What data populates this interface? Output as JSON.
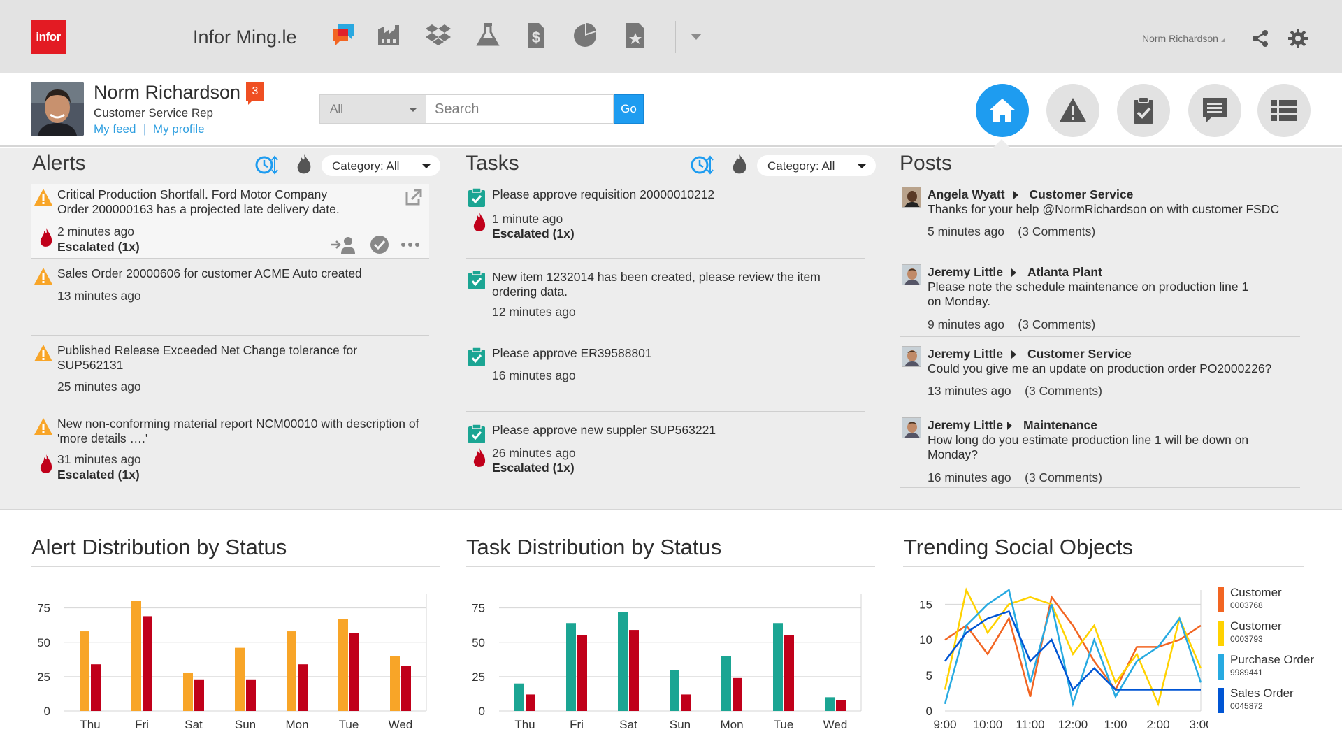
{
  "topbar": {
    "logo_text": "infor",
    "app_title": "Infor Ming.le",
    "user_menu_label": "Norm Richardson",
    "app_icons": [
      "chat-app-icon",
      "factory-app-icon",
      "dropbox-app-icon",
      "lab-flask-app-icon",
      "finance-dollar-app-icon",
      "analytics-pie-app-icon",
      "document-star-app-icon"
    ]
  },
  "profile": {
    "name": "Norm Richardson",
    "notification_count": "3",
    "role": "Customer Service Rep",
    "my_feed": "My feed",
    "link_separator": "|",
    "my_profile": "My profile"
  },
  "search": {
    "scope": "All",
    "placeholder": "Search",
    "go_label": "Go"
  },
  "nav": [
    "home",
    "alerts",
    "tasks",
    "posts",
    "list"
  ],
  "alerts": {
    "title": "Alerts",
    "category": "Category: All",
    "items": [
      {
        "text": "Critical Production Shortfall. Ford Motor Company Order 200000163 has a projected late delivery date.",
        "time": "2 minutes ago",
        "escalated": "Escalated (1x)"
      },
      {
        "text": "Sales Order 20000606 for customer ACME Auto created",
        "time": "13 minutes ago",
        "escalated": ""
      },
      {
        "text": "Published Release Exceeded Net Change tolerance for SUP562131",
        "time": "25 minutes ago",
        "escalated": ""
      },
      {
        "text": "New non-conforming material report NCM00010 with description of 'more details ….'",
        "time": "31 minutes ago",
        "escalated": "Escalated (1x)"
      }
    ]
  },
  "tasks": {
    "title": "Tasks",
    "category": "Category: All",
    "items": [
      {
        "text": "Please approve requisition 20000010212",
        "time": "1 minute ago",
        "escalated": "Escalated (1x)"
      },
      {
        "text": "New item 1232014 has been created, please review the item ordering data.",
        "time": "12 minutes ago",
        "escalated": ""
      },
      {
        "text": "Please approve ER39588801",
        "time": "16 minutes ago",
        "escalated": ""
      },
      {
        "text": "Please approve new suppler SUP563221",
        "time": "26 minutes ago",
        "escalated": "Escalated (1x)"
      }
    ]
  },
  "posts": {
    "title": "Posts",
    "items": [
      {
        "author": "Angela Wyatt",
        "group": "Customer Service",
        "text": "Thanks for your help @NormRichardson on with customer FSDC",
        "time": "5 minutes ago",
        "comments": "(3 Comments)"
      },
      {
        "author": "Jeremy Little",
        "group": "Atlanta Plant",
        "text": "Please note the schedule maintenance on production line 1 on Monday.",
        "time": "9 minutes ago",
        "comments": "(3 Comments)"
      },
      {
        "author": "Jeremy Little",
        "group": "Customer Service",
        "text": "Could you give me an update on production order PO2000226?",
        "time": "13 minutes ago",
        "comments": "(3 Comments)"
      },
      {
        "author": "Jeremy Little",
        "group": "Maintenance",
        "text": "How long do you estimate production line 1 will be down on Monday?",
        "time": "16 minutes ago",
        "comments": "(3 Comments)"
      }
    ]
  },
  "colors": {
    "accent_blue": "#1e9cf0",
    "alert_orange": "#f8a528",
    "alert_red": "#c0001a",
    "task_teal": "#1ba593",
    "task_red": "#c0001a"
  },
  "chart_data": [
    {
      "type": "bar",
      "title": "Alert Distribution by Status",
      "categories": [
        "Thu",
        "Fri",
        "Sat",
        "Sun",
        "Mon",
        "Tue",
        "Wed"
      ],
      "series": [
        {
          "color": "#f8a528",
          "values": [
            58,
            80,
            28,
            46,
            58,
            67,
            40
          ]
        },
        {
          "color": "#c0001a",
          "values": [
            34,
            69,
            23,
            23,
            34,
            57,
            33
          ]
        }
      ],
      "yticks": [
        0,
        25,
        50,
        75
      ],
      "ylim": [
        0,
        85
      ],
      "grid": true
    },
    {
      "type": "bar",
      "title": "Task Distribution by Status",
      "categories": [
        "Thu",
        "Fri",
        "Sat",
        "Sun",
        "Mon",
        "Tue",
        "Wed"
      ],
      "series": [
        {
          "color": "#1ba593",
          "values": [
            20,
            64,
            72,
            30,
            40,
            64,
            10
          ]
        },
        {
          "color": "#c0001a",
          "values": [
            12,
            55,
            59,
            12,
            24,
            55,
            8
          ]
        }
      ],
      "yticks": [
        0,
        25,
        50,
        75
      ],
      "ylim": [
        0,
        85
      ],
      "grid": true
    },
    {
      "type": "line",
      "title": "Trending Social Objects",
      "x": [
        "9:00",
        "9:30",
        "10:00",
        "10:30",
        "11:00",
        "11:30",
        "12:00",
        "12:30",
        "1:00",
        "1:30",
        "2:00",
        "2:30",
        "3:00"
      ],
      "xticks": [
        "9:00",
        "10:00",
        "11:00",
        "12:00",
        "1:00",
        "2:00",
        "3:00"
      ],
      "yticks": [
        0,
        5,
        10,
        15
      ],
      "ylim": [
        0,
        17
      ],
      "grid": true,
      "legend": "right",
      "series": [
        {
          "name": "Customer",
          "id": "0003768",
          "color": "#f26522",
          "values": [
            10,
            12,
            8,
            13,
            2,
            16,
            12,
            7,
            3,
            9,
            9,
            10,
            12
          ]
        },
        {
          "name": "Customer",
          "id": "0003793",
          "color": "#ffd200",
          "values": [
            3,
            17,
            11,
            15,
            16,
            15,
            8,
            12,
            4,
            8,
            1,
            13,
            6
          ]
        },
        {
          "name": "Purchase Order",
          "id": "9989441",
          "color": "#27aae1",
          "values": [
            1,
            12,
            15,
            17,
            4,
            15,
            1,
            10,
            2,
            7,
            9,
            13,
            4
          ]
        },
        {
          "name": "Sales Order",
          "id": "0045872",
          "color": "#0055d4",
          "values": [
            7,
            11,
            13,
            14,
            7,
            10,
            3,
            6,
            3,
            3,
            3,
            3,
            3
          ]
        }
      ]
    }
  ]
}
